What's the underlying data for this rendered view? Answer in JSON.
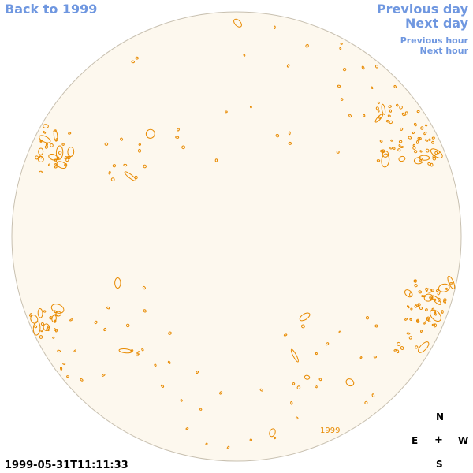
{
  "nav": {
    "back": "Back to 1999",
    "previous_day": "Previous day",
    "next_day": "Next day",
    "previous_hour": "Previous hour",
    "next_hour": "Next hour"
  },
  "timestamp": "1999-05-31T11:11:33",
  "year_label": "1999",
  "compass": {
    "north": "N",
    "east": "E",
    "center": "+",
    "west": "W",
    "south": "S"
  },
  "colors": {
    "disk_fill": "#fdf8ee",
    "disk_edge": "#c8c0b0",
    "contour": "#e88a00",
    "link": "#6f97e0"
  }
}
